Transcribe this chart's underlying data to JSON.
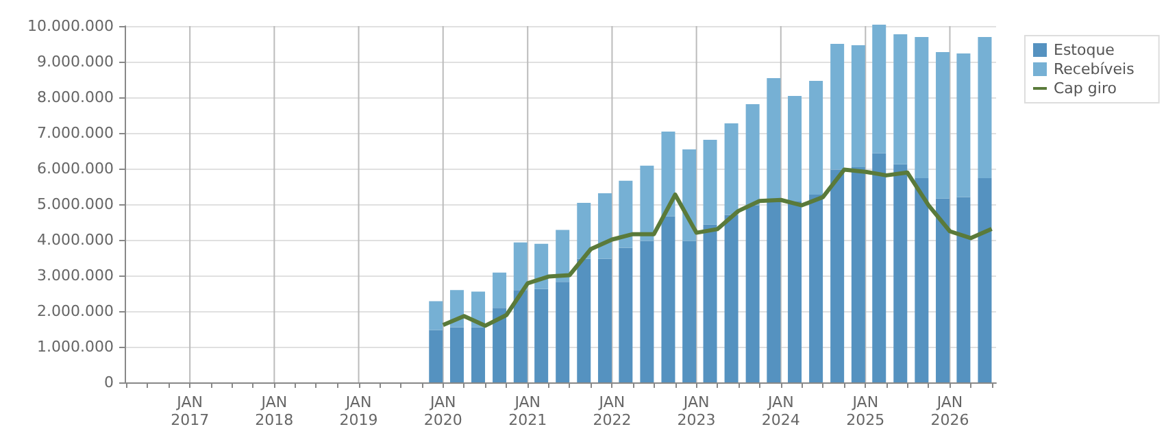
{
  "chart_data": {
    "type": "bar",
    "stacked": true,
    "x": [
      "2019-12",
      "2020-03",
      "2020-06",
      "2020-09",
      "2020-12",
      "2021-03",
      "2021-06",
      "2021-09",
      "2021-12",
      "2022-03",
      "2022-06",
      "2022-09",
      "2022-12",
      "2023-03",
      "2023-06",
      "2023-09",
      "2023-12",
      "2024-03",
      "2024-06",
      "2024-09",
      "2024-12",
      "2025-03",
      "2025-06",
      "2025-09",
      "2025-12",
      "2026-03",
      "2026-06"
    ],
    "series": [
      {
        "name": "Estoque",
        "color": "#5592c0",
        "values": [
          1470000,
          1550000,
          1550000,
          2090000,
          2590000,
          2620000,
          2820000,
          3470000,
          3470000,
          3780000,
          3970000,
          4660000,
          3970000,
          4430000,
          4700000,
          4970000,
          5120000,
          5090000,
          5270000,
          5970000,
          6040000,
          6430000,
          6120000,
          5730000,
          5160000,
          5200000,
          5730000
        ]
      },
      {
        "name": "Recebíveis",
        "color": "#76b0d4",
        "values": [
          810000,
          1040000,
          1000000,
          990000,
          1340000,
          1270000,
          1460000,
          1570000,
          1840000,
          1880000,
          2110000,
          2380000,
          2570000,
          2380000,
          2570000,
          2840000,
          3420000,
          2950000,
          3190000,
          3530000,
          3420000,
          3610000,
          3650000,
          3960000,
          4110000,
          4030000,
          3960000
        ]
      },
      {
        "name": "Cap giro",
        "type": "line",
        "color": "#5a7a3a",
        "x": [
          "2020-01",
          "2020-04",
          "2020-07",
          "2020-10",
          "2021-01",
          "2021-04",
          "2021-07",
          "2021-10",
          "2022-01",
          "2022-04",
          "2022-07",
          "2022-10",
          "2023-01",
          "2023-04",
          "2023-07",
          "2023-10",
          "2024-01",
          "2024-04",
          "2024-07",
          "2024-10",
          "2025-01",
          "2025-04",
          "2025-07",
          "2025-10",
          "2026-01",
          "2026-04",
          "2026-07"
        ],
        "values": [
          1610000,
          1860000,
          1590000,
          1890000,
          2780000,
          2970000,
          3010000,
          3740000,
          4010000,
          4160000,
          4160000,
          5270000,
          4200000,
          4300000,
          4810000,
          5090000,
          5120000,
          4970000,
          5200000,
          5970000,
          5910000,
          5810000,
          5890000,
          4970000,
          4240000,
          4050000,
          4310000
        ]
      }
    ],
    "xlim": [
      "2016-03-25",
      "2026-07-20"
    ],
    "xticks": [
      {
        "value": "2016-04",
        "label": null
      },
      {
        "value": "2016-07",
        "label": null
      },
      {
        "value": "2016-10",
        "label": null
      },
      {
        "value": "2017-01",
        "label": "JAN\n2017"
      },
      {
        "value": "2017-04",
        "label": null
      },
      {
        "value": "2017-07",
        "label": null
      },
      {
        "value": "2017-10",
        "label": null
      },
      {
        "value": "2018-01",
        "label": "JAN\n2018"
      },
      {
        "value": "2018-04",
        "label": null
      },
      {
        "value": "2018-07",
        "label": null
      },
      {
        "value": "2018-10",
        "label": null
      },
      {
        "value": "2019-01",
        "label": "JAN\n2019"
      },
      {
        "value": "2019-04",
        "label": null
      },
      {
        "value": "2019-07",
        "label": null
      },
      {
        "value": "2019-10",
        "label": null
      },
      {
        "value": "2020-01",
        "label": "JAN\n2020"
      },
      {
        "value": "2020-04",
        "label": null
      },
      {
        "value": "2020-07",
        "label": null
      },
      {
        "value": "2020-10",
        "label": null
      },
      {
        "value": "2021-01",
        "label": "JAN\n2021"
      },
      {
        "value": "2021-04",
        "label": null
      },
      {
        "value": "2021-07",
        "label": null
      },
      {
        "value": "2021-10",
        "label": null
      },
      {
        "value": "2022-01",
        "label": "JAN\n2022"
      },
      {
        "value": "2022-04",
        "label": null
      },
      {
        "value": "2022-07",
        "label": null
      },
      {
        "value": "2022-10",
        "label": null
      },
      {
        "value": "2023-01",
        "label": "JAN\n2023"
      },
      {
        "value": "2023-04",
        "label": null
      },
      {
        "value": "2023-07",
        "label": null
      },
      {
        "value": "2023-10",
        "label": null
      },
      {
        "value": "2024-01",
        "label": "JAN\n2024"
      },
      {
        "value": "2024-04",
        "label": null
      },
      {
        "value": "2024-07",
        "label": null
      },
      {
        "value": "2024-10",
        "label": null
      },
      {
        "value": "2025-01",
        "label": "JAN\n2025"
      },
      {
        "value": "2025-04",
        "label": null
      },
      {
        "value": "2025-07",
        "label": null
      },
      {
        "value": "2025-10",
        "label": null
      },
      {
        "value": "2026-01",
        "label": "JAN\n2026"
      },
      {
        "value": "2026-04",
        "label": null
      },
      {
        "value": "2026-07",
        "label": null
      }
    ],
    "ylim": [
      0,
      10000000
    ],
    "yticks": [
      0,
      {
        "value": 1000000,
        "label": "1.000.000"
      },
      {
        "value": 2000000,
        "label": "2.000.000"
      },
      {
        "value": 3000000,
        "label": "3.000.000"
      },
      {
        "value": 4000000,
        "label": "4.000.000"
      },
      {
        "value": 5000000,
        "label": "5.000.000"
      },
      {
        "value": 6000000,
        "label": "6.000.000"
      },
      {
        "value": 7000000,
        "label": "7.000.000"
      },
      {
        "value": 8000000,
        "label": "8.000.000"
      },
      {
        "value": 9000000,
        "label": "9.000.000"
      },
      {
        "value": 10000000,
        "label": "10.000.000"
      }
    ],
    "grid": true,
    "legend": "top right",
    "marker": "none",
    "line_style": "solid"
  }
}
